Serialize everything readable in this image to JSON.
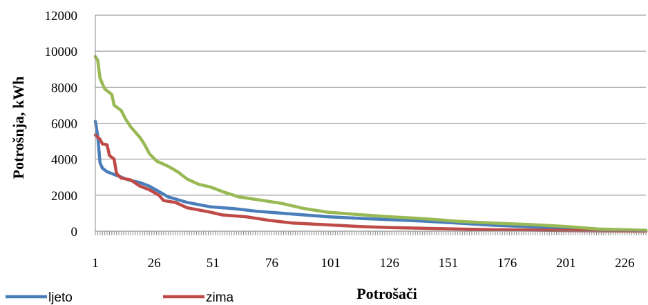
{
  "chart_data": {
    "type": "line",
    "xlabel": "Potrošači",
    "ylabel": "Potrošnja, kWh",
    "x_range": [
      1,
      235
    ],
    "ylim": [
      0,
      12000
    ],
    "y_ticks": [
      0,
      2000,
      4000,
      6000,
      8000,
      10000,
      12000
    ],
    "x_tick_labels": [
      1,
      26,
      51,
      76,
      101,
      126,
      151,
      176,
      201,
      226
    ],
    "grid": "horizontal",
    "legend_position": "bottom-left",
    "series": [
      {
        "name": "ljeto",
        "color": "#4a7ebb",
        "points": [
          [
            1,
            6100
          ],
          [
            2,
            5300
          ],
          [
            3,
            3800
          ],
          [
            4,
            3500
          ],
          [
            6,
            3300
          ],
          [
            10,
            3100
          ],
          [
            15,
            2850
          ],
          [
            20,
            2700
          ],
          [
            24,
            2500
          ],
          [
            28,
            2200
          ],
          [
            32,
            1900
          ],
          [
            40,
            1600
          ],
          [
            50,
            1350
          ],
          [
            60,
            1250
          ],
          [
            70,
            1100
          ],
          [
            85,
            950
          ],
          [
            100,
            800
          ],
          [
            115,
            700
          ],
          [
            126,
            640
          ],
          [
            140,
            560
          ],
          [
            155,
            450
          ],
          [
            170,
            330
          ],
          [
            185,
            250
          ],
          [
            200,
            160
          ],
          [
            215,
            80
          ],
          [
            235,
            30
          ]
        ]
      },
      {
        "name": "zima",
        "color": "#be4b48",
        "points": [
          [
            1,
            5350
          ],
          [
            3,
            5100
          ],
          [
            4,
            4850
          ],
          [
            6,
            4800
          ],
          [
            7,
            4200
          ],
          [
            9,
            4000
          ],
          [
            10,
            3200
          ],
          [
            12,
            2950
          ],
          [
            16,
            2850
          ],
          [
            20,
            2500
          ],
          [
            24,
            2300
          ],
          [
            28,
            2000
          ],
          [
            30,
            1700
          ],
          [
            35,
            1600
          ],
          [
            40,
            1300
          ],
          [
            50,
            1050
          ],
          [
            55,
            900
          ],
          [
            65,
            800
          ],
          [
            75,
            600
          ],
          [
            85,
            450
          ],
          [
            100,
            350
          ],
          [
            115,
            250
          ],
          [
            126,
            200
          ],
          [
            140,
            160
          ],
          [
            155,
            120
          ],
          [
            170,
            80
          ],
          [
            185,
            60
          ],
          [
            200,
            40
          ],
          [
            215,
            20
          ],
          [
            235,
            0
          ]
        ]
      },
      {
        "name": "",
        "color": "#98b954",
        "points": [
          [
            1,
            9700
          ],
          [
            2,
            9500
          ],
          [
            3,
            8500
          ],
          [
            5,
            7900
          ],
          [
            7,
            7700
          ],
          [
            8,
            7600
          ],
          [
            9,
            7000
          ],
          [
            12,
            6700
          ],
          [
            14,
            6200
          ],
          [
            16,
            5800
          ],
          [
            18,
            5500
          ],
          [
            20,
            5200
          ],
          [
            22,
            4800
          ],
          [
            24,
            4300
          ],
          [
            27,
            3900
          ],
          [
            32,
            3600
          ],
          [
            36,
            3300
          ],
          [
            40,
            2900
          ],
          [
            45,
            2600
          ],
          [
            50,
            2450
          ],
          [
            55,
            2200
          ],
          [
            62,
            1900
          ],
          [
            70,
            1750
          ],
          [
            80,
            1550
          ],
          [
            90,
            1250
          ],
          [
            100,
            1050
          ],
          [
            115,
            900
          ],
          [
            126,
            800
          ],
          [
            140,
            700
          ],
          [
            155,
            550
          ],
          [
            170,
            450
          ],
          [
            185,
            370
          ],
          [
            200,
            270
          ],
          [
            215,
            120
          ],
          [
            235,
            50
          ]
        ]
      }
    ]
  }
}
